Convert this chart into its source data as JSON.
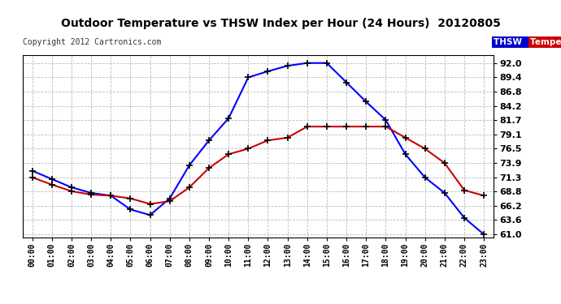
{
  "title": "Outdoor Temperature vs THSW Index per Hour (24 Hours)  20120805",
  "copyright": "Copyright 2012 Cartronics.com",
  "background_color": "#ffffff",
  "plot_background": "#ffffff",
  "grid_color": "#bbbbbb",
  "hours": [
    "00:00",
    "01:00",
    "02:00",
    "03:00",
    "04:00",
    "05:00",
    "06:00",
    "07:00",
    "08:00",
    "09:00",
    "10:00",
    "11:00",
    "12:00",
    "13:00",
    "14:00",
    "15:00",
    "16:00",
    "17:00",
    "18:00",
    "19:00",
    "20:00",
    "21:00",
    "22:00",
    "23:00"
  ],
  "thsw": [
    72.5,
    71.0,
    69.5,
    68.5,
    68.0,
    65.5,
    64.5,
    67.5,
    73.5,
    78.0,
    82.0,
    89.4,
    90.5,
    91.5,
    92.0,
    92.0,
    88.5,
    85.0,
    81.7,
    75.5,
    71.3,
    68.5,
    64.0,
    61.0
  ],
  "temperature": [
    71.3,
    70.0,
    68.8,
    68.2,
    68.0,
    67.5,
    66.5,
    67.0,
    69.5,
    73.0,
    75.5,
    76.5,
    78.0,
    78.5,
    80.5,
    80.5,
    80.5,
    80.5,
    80.5,
    78.5,
    76.5,
    73.9,
    69.0,
    68.0
  ],
  "thsw_color": "#0000ff",
  "temp_color": "#cc0000",
  "ylim_min": 61.0,
  "ylim_max": 92.0,
  "yticks": [
    61.0,
    63.6,
    66.2,
    68.8,
    71.3,
    73.9,
    76.5,
    79.1,
    81.7,
    84.2,
    86.8,
    89.4,
    92.0
  ],
  "marker": "+",
  "marker_color": "#000000",
  "marker_size": 6,
  "linewidth": 1.5,
  "legend_thsw_bg": "#0000cc",
  "legend_temp_bg": "#cc0000",
  "legend_text_color": "#ffffff"
}
